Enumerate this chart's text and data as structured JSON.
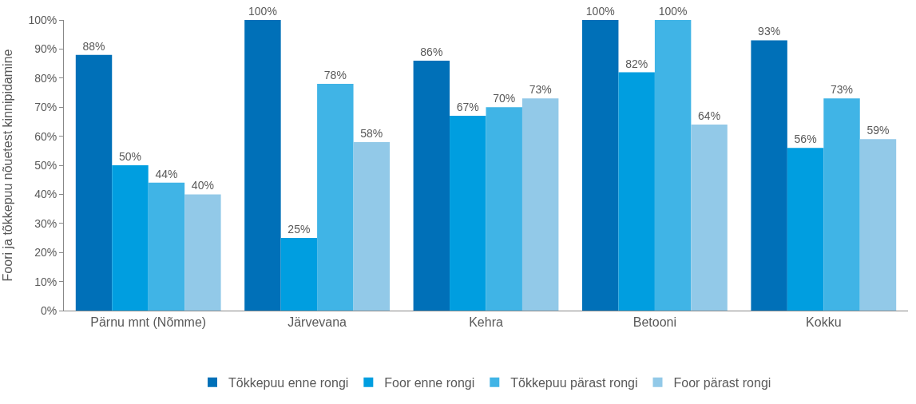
{
  "chart_data": {
    "type": "bar",
    "ylabel": "Foori ja tõkkepuu nõuetest kinnipidamine",
    "categories": [
      "Pärnu mnt (Nõmme)",
      "Järvevana",
      "Kehra",
      "Betooni",
      "Kokku"
    ],
    "series": [
      {
        "name": "Tõkkepuu enne rongi",
        "color": "#0070b8",
        "values": [
          88,
          100,
          86,
          100,
          93
        ],
        "value_labels": [
          "88%",
          "100%",
          "86%",
          "100%",
          "93%"
        ]
      },
      {
        "name": "Foor enne rongi",
        "color": "#009ee0",
        "values": [
          50,
          25,
          67,
          82,
          56
        ],
        "value_labels": [
          "50%",
          "25%",
          "67%",
          "82%",
          "56%"
        ]
      },
      {
        "name": "Tõkkepuu pärast rongi",
        "color": "#40b4e6",
        "values": [
          44,
          78,
          70,
          100,
          73
        ],
        "value_labels": [
          "44%",
          "78%",
          "70%",
          "100%",
          "73%"
        ]
      },
      {
        "name": "Foor pärast rongi",
        "color": "#92c9e8",
        "values": [
          40,
          58,
          73,
          64,
          59
        ],
        "value_labels": [
          "40%",
          "58%",
          "73%",
          "64%",
          "59%"
        ]
      }
    ],
    "ylim": [
      0,
      100
    ],
    "yticks": [
      {
        "value": 0,
        "label": "0%"
      },
      {
        "value": 10,
        "label": "10%"
      },
      {
        "value": 20,
        "label": "20%"
      },
      {
        "value": 30,
        "label": "30%"
      },
      {
        "value": 40,
        "label": "40%"
      },
      {
        "value": 50,
        "label": "50%"
      },
      {
        "value": 60,
        "label": "60%"
      },
      {
        "value": 70,
        "label": "70%"
      },
      {
        "value": 80,
        "label": "80%"
      },
      {
        "value": 90,
        "label": "90%"
      },
      {
        "value": 100,
        "label": "100%"
      }
    ],
    "legend": "bottom"
  }
}
